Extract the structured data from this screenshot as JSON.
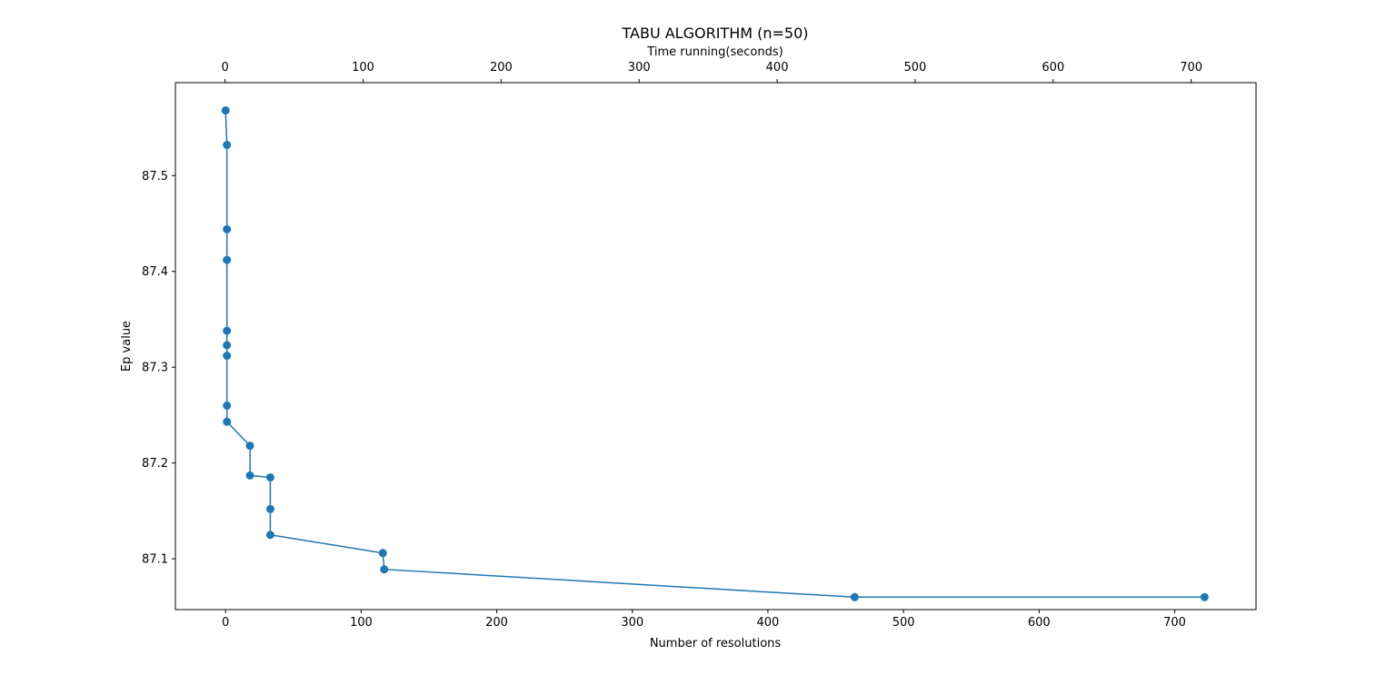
{
  "chart_data": {
    "type": "line",
    "title": "TABU ALGORITHM (n=50)",
    "xlabel": "Number of resolutions",
    "ylabel": "Ep value",
    "x2label": "Time running(seconds)",
    "xlim": [
      -37,
      760
    ],
    "ylim": [
      87.047,
      87.597
    ],
    "x2lim": [
      -36,
      747
    ],
    "xticks": [
      0,
      100,
      200,
      300,
      400,
      500,
      600,
      700
    ],
    "yticks": [
      87.1,
      87.2,
      87.3,
      87.4,
      87.5
    ],
    "x2ticks": [
      0,
      100,
      200,
      300,
      400,
      500,
      600,
      700
    ],
    "grid": false,
    "marker": "circle",
    "series": [
      {
        "color": "#1f77b4",
        "x": [
          0,
          1,
          1,
          1,
          1,
          1,
          1,
          1,
          1,
          18,
          18,
          33,
          33,
          33,
          116,
          117,
          464,
          722
        ],
        "y": [
          87.568,
          87.532,
          87.444,
          87.412,
          87.338,
          87.323,
          87.312,
          87.26,
          87.243,
          87.218,
          87.187,
          87.185,
          87.152,
          87.125,
          87.106,
          87.089,
          87.06,
          87.06
        ]
      }
    ]
  }
}
